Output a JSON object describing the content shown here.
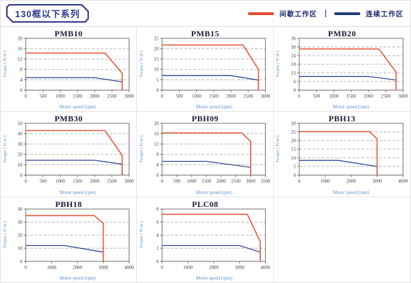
{
  "header": {
    "series_badge": "130框以下系列"
  },
  "legend": {
    "items": [
      {
        "label": "间歇工作区",
        "color": "#e54a2e"
      },
      {
        "label": "连续工作区",
        "color": "#1f3a80"
      }
    ],
    "separator": "|"
  },
  "colors": {
    "intermittent_line": "#e8553f",
    "continuous_line": "#2e4392",
    "gridline": "#b5b5b5",
    "plot_border": "#707070",
    "tick_label": "#3d3d3d",
    "axis_label": "#5b8fd0",
    "title_text": "#1a1a36",
    "header_navy": "#2b3490",
    "cell_border": "#e4e4e4"
  },
  "chart_data": [
    {
      "type": "line",
      "title": "PMB10",
      "xlabel": "Motor speed (rpm)",
      "ylabel": "Torque ( N·m )",
      "xlim": [
        0,
        3000
      ],
      "ylim": [
        0,
        20
      ],
      "xticks": [
        0,
        500,
        1000,
        1500,
        2000,
        2500,
        3000
      ],
      "yticks": [
        0,
        4,
        8,
        12,
        16,
        20
      ],
      "series": [
        {
          "name": "间歇工作区",
          "color": "#e8553f",
          "points": [
            [
              0,
              14.3
            ],
            [
              2300,
              14.3
            ],
            [
              2800,
              6.5
            ],
            [
              2800,
              0
            ]
          ]
        },
        {
          "name": "连续工作区",
          "color": "#2e4392",
          "points": [
            [
              0,
              4.8
            ],
            [
              2000,
              4.8
            ],
            [
              2800,
              3.2
            ],
            [
              2800,
              0
            ]
          ]
        }
      ]
    },
    {
      "type": "line",
      "title": "PMB15",
      "xlabel": "Motor speed (rpm)",
      "ylabel": "Torque ( N·m )",
      "xlim": [
        0,
        3000
      ],
      "ylim": [
        0,
        25
      ],
      "xticks": [
        0,
        500,
        1000,
        1500,
        2000,
        2500,
        3000
      ],
      "yticks": [
        0,
        5,
        10,
        15,
        20,
        25
      ],
      "series": [
        {
          "name": "间歇工作区",
          "color": "#e8553f",
          "points": [
            [
              0,
              21.8
            ],
            [
              2350,
              21.8
            ],
            [
              2800,
              10
            ],
            [
              2800,
              0
            ]
          ]
        },
        {
          "name": "连续工作区",
          "color": "#2e4392",
          "points": [
            [
              0,
              7
            ],
            [
              2000,
              7
            ],
            [
              2800,
              4.8
            ],
            [
              2800,
              0
            ]
          ]
        }
      ]
    },
    {
      "type": "line",
      "title": "PMB20",
      "xlabel": "Motor speed (rpm)",
      "ylabel": "Torque ( N·m )",
      "xlim": [
        0,
        3000
      ],
      "ylim": [
        0,
        36
      ],
      "xticks": [
        0,
        500,
        1000,
        1500,
        2000,
        2500,
        3000
      ],
      "yticks": [
        0,
        6,
        12,
        18,
        24,
        30,
        36
      ],
      "series": [
        {
          "name": "间歇工作区",
          "color": "#e8553f",
          "points": [
            [
              0,
              28.6
            ],
            [
              2300,
              28.6
            ],
            [
              2800,
              12.5
            ],
            [
              2800,
              0
            ]
          ]
        },
        {
          "name": "连续工作区",
          "color": "#2e4392",
          "points": [
            [
              0,
              9.5
            ],
            [
              2000,
              9.5
            ],
            [
              2800,
              7
            ],
            [
              2800,
              0
            ]
          ]
        }
      ]
    },
    {
      "type": "line",
      "title": "PMB30",
      "xlabel": "Motor speed (rpm)",
      "ylabel": "Torque ( N·m )",
      "xlim": [
        0,
        3000
      ],
      "ylim": [
        0,
        50
      ],
      "xticks": [
        0,
        500,
        1000,
        1500,
        2000,
        2500,
        3000
      ],
      "yticks": [
        0,
        10,
        20,
        30,
        40,
        50
      ],
      "series": [
        {
          "name": "间歇工作区",
          "color": "#e8553f",
          "points": [
            [
              0,
              43
            ],
            [
              2300,
              43
            ],
            [
              2800,
              19
            ],
            [
              2800,
              0
            ]
          ]
        },
        {
          "name": "连续工作区",
          "color": "#2e4392",
          "points": [
            [
              0,
              14.3
            ],
            [
              2000,
              14.3
            ],
            [
              2800,
              10.5
            ],
            [
              2800,
              0
            ]
          ]
        }
      ]
    },
    {
      "type": "line",
      "title": "PBH09",
      "xlabel": "Motor speed (rpm)",
      "ylabel": "Torque ( N·m )",
      "xlim": [
        0,
        3500
      ],
      "ylim": [
        0,
        20
      ],
      "xticks": [
        0,
        500,
        1000,
        1500,
        2000,
        2500,
        3000,
        3500
      ],
      "yticks": [
        0,
        4,
        8,
        12,
        16,
        20
      ],
      "series": [
        {
          "name": "间歇工作区",
          "color": "#e8553f",
          "points": [
            [
              0,
              16.3
            ],
            [
              2700,
              16.3
            ],
            [
              3000,
              13
            ],
            [
              3000,
              0
            ]
          ]
        },
        {
          "name": "连续工作区",
          "color": "#2e4392",
          "points": [
            [
              0,
              5.3
            ],
            [
              1500,
              5.3
            ],
            [
              3000,
              3
            ],
            [
              3000,
              0
            ]
          ]
        }
      ]
    },
    {
      "type": "line",
      "title": "PBH13",
      "xlabel": "Motor speed (rpm)",
      "ylabel": "Torque ( N·m )",
      "xlim": [
        0,
        4000
      ],
      "ylim": [
        0,
        30
      ],
      "xticks": [
        0,
        1000,
        2000,
        3000,
        4000
      ],
      "yticks": [
        0,
        5,
        10,
        15,
        20,
        25,
        30
      ],
      "series": [
        {
          "name": "间歇工作区",
          "color": "#e8553f",
          "points": [
            [
              0,
              25.2
            ],
            [
              2700,
              25.2
            ],
            [
              3000,
              21
            ],
            [
              3000,
              0
            ]
          ]
        },
        {
          "name": "连续工作区",
          "color": "#2e4392",
          "points": [
            [
              0,
              8.5
            ],
            [
              1500,
              8.5
            ],
            [
              3000,
              5
            ],
            [
              3000,
              0
            ]
          ]
        }
      ]
    },
    {
      "type": "line",
      "title": "PBH18",
      "xlabel": "Motor speed (rpm)",
      "ylabel": "Torque ( N·m )",
      "xlim": [
        0,
        4000
      ],
      "ylim": [
        0,
        40
      ],
      "xticks": [
        0,
        1000,
        2000,
        3000,
        4000
      ],
      "yticks": [
        0,
        10,
        20,
        30,
        40
      ],
      "series": [
        {
          "name": "间歇工作区",
          "color": "#e8553f",
          "points": [
            [
              0,
              35
            ],
            [
              2650,
              35
            ],
            [
              3000,
              29
            ],
            [
              3000,
              0
            ]
          ]
        },
        {
          "name": "连续工作区",
          "color": "#2e4392",
          "points": [
            [
              0,
              12
            ],
            [
              1500,
              12
            ],
            [
              3000,
              7
            ],
            [
              3000,
              0
            ]
          ]
        }
      ]
    },
    {
      "type": "line",
      "title": "PLC08",
      "xlabel": "Motor speed (rpm)",
      "ylabel": "Torque ( N·m )",
      "xlim": [
        0,
        4000
      ],
      "ylim": [
        0,
        8
      ],
      "xticks": [
        0,
        1000,
        2000,
        3000,
        4000
      ],
      "yticks": [
        0,
        2,
        4,
        6,
        8
      ],
      "series": [
        {
          "name": "间歇工作区",
          "color": "#e8553f",
          "points": [
            [
              0,
              7.2
            ],
            [
              3300,
              7.2
            ],
            [
              3800,
              3
            ],
            [
              3800,
              0
            ]
          ]
        },
        {
          "name": "连续工作区",
          "color": "#2e4392",
          "points": [
            [
              0,
              2.4
            ],
            [
              3000,
              2.4
            ],
            [
              3800,
              1.4
            ],
            [
              3800,
              0
            ]
          ]
        }
      ]
    }
  ]
}
